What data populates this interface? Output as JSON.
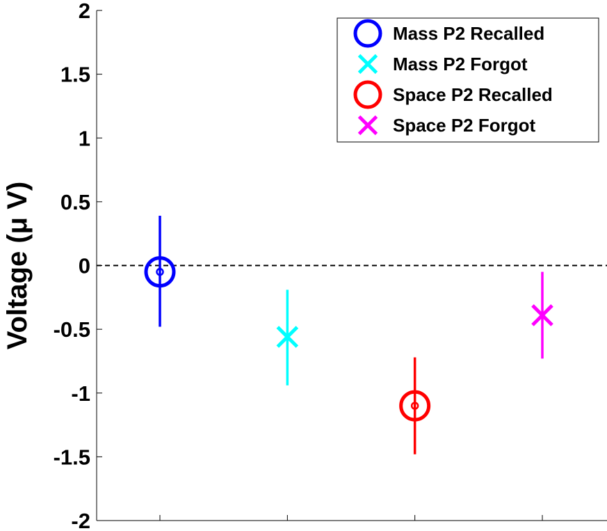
{
  "chart_data": {
    "type": "scatter",
    "title": "",
    "xlabel": "",
    "ylabel": "Voltage (μ V)",
    "ylim": [
      -2,
      2
    ],
    "yticks": [
      -2,
      -1.5,
      -1,
      -0.5,
      0,
      0.5,
      1,
      1.5,
      2
    ],
    "ytick_labels": [
      "-2",
      "-1.5",
      "-1",
      "-0.5",
      "0",
      "0.5",
      "1",
      "1.5",
      "2"
    ],
    "x_categories": 4,
    "grid": false,
    "reference_line": {
      "y": 0,
      "style": "dashed"
    },
    "legend_position": "top-right",
    "series": [
      {
        "name": "Mass P2 Recalled",
        "x": 1,
        "y": -0.05,
        "err_low": -0.48,
        "err_high": 0.39,
        "marker": "circle",
        "color": "#0000ff"
      },
      {
        "name": "Mass P2 Forgot",
        "x": 2,
        "y": -0.56,
        "err_low": -0.94,
        "err_high": -0.19,
        "marker": "x",
        "color": "#00ffff"
      },
      {
        "name": "Space P2 Recalled",
        "x": 3,
        "y": -1.1,
        "err_low": -1.48,
        "err_high": -0.72,
        "marker": "circle",
        "color": "#ff0000"
      },
      {
        "name": "Space P2 Forgot",
        "x": 4,
        "y": -0.39,
        "err_low": -0.73,
        "err_high": -0.05,
        "marker": "x",
        "color": "#ff00ff"
      }
    ]
  }
}
